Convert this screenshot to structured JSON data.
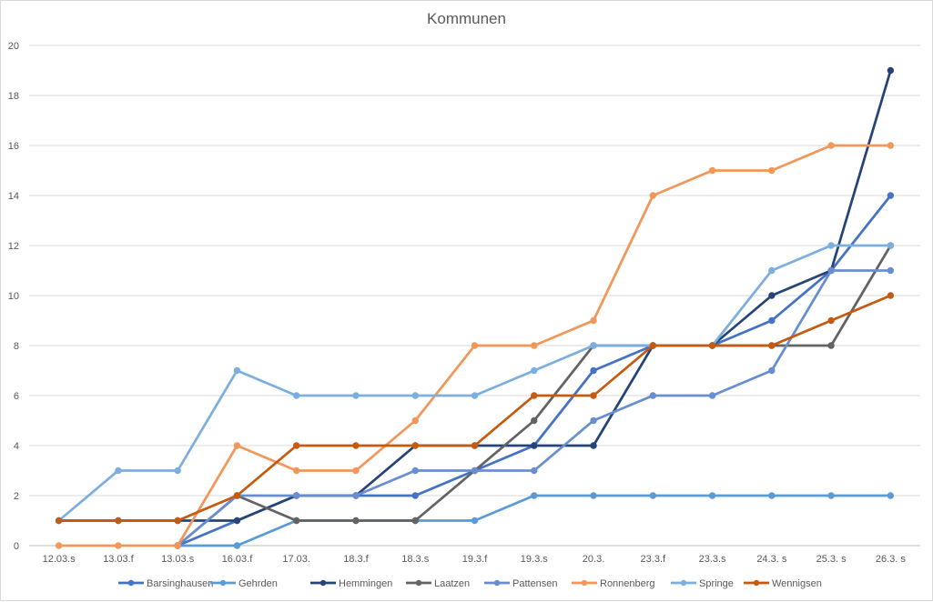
{
  "chart_data": {
    "type": "line",
    "title": "Kommunen",
    "xlabel": "",
    "ylabel": "",
    "ylim": [
      0,
      20
    ],
    "yticks": [
      "0",
      "2",
      "4",
      "6",
      "8",
      "10",
      "12",
      "14",
      "16",
      "18",
      "20"
    ],
    "grid": true,
    "legend_position": "bottom",
    "categories": [
      "12.03.s",
      "13.03.f",
      "13.03.s",
      "16.03.f",
      "17.03.",
      "18.3.f",
      "18.3.s",
      "19.3.f",
      "19.3.s",
      "20.3.",
      "23.3.f",
      "23.3.s",
      "24.3. s",
      "25.3. s",
      "26.3. s"
    ],
    "series": [
      {
        "name": "Barsinghausen",
        "color": "#4472c4",
        "values": [
          null,
          null,
          0,
          1,
          2,
          2,
          2,
          3,
          4,
          7,
          8,
          8,
          9,
          11,
          14
        ]
      },
      {
        "name": "Gehrden",
        "color": "#5b9bd5",
        "values": [
          null,
          null,
          0,
          0,
          1,
          1,
          1,
          1,
          2,
          2,
          2,
          2,
          2,
          2,
          2
        ]
      },
      {
        "name": "Hemmingen",
        "color": "#264478",
        "values": [
          1,
          1,
          1,
          1,
          2,
          2,
          4,
          4,
          4,
          4,
          8,
          8,
          10,
          11,
          19
        ]
      },
      {
        "name": "Laatzen",
        "color": "#636363",
        "values": [
          null,
          null,
          0,
          2,
          1,
          1,
          1,
          3,
          5,
          8,
          8,
          8,
          8,
          8,
          12
        ]
      },
      {
        "name": "Pattensen",
        "color": "#698ed0",
        "values": [
          null,
          null,
          0,
          2,
          2,
          2,
          3,
          3,
          3,
          5,
          6,
          6,
          7,
          11,
          11
        ]
      },
      {
        "name": "Ronnenberg",
        "color": "#f1975a",
        "values": [
          0,
          0,
          0,
          4,
          3,
          3,
          5,
          8,
          8,
          9,
          14,
          15,
          15,
          16,
          16
        ]
      },
      {
        "name": "Springe",
        "color": "#7cafdd",
        "values": [
          1,
          3,
          3,
          7,
          6,
          6,
          6,
          6,
          7,
          8,
          8,
          8,
          11,
          12,
          12
        ]
      },
      {
        "name": "Wennigsen",
        "color": "#c55a11",
        "values": [
          1,
          1,
          1,
          2,
          4,
          4,
          4,
          4,
          6,
          6,
          8,
          8,
          8,
          9,
          10
        ]
      }
    ]
  }
}
